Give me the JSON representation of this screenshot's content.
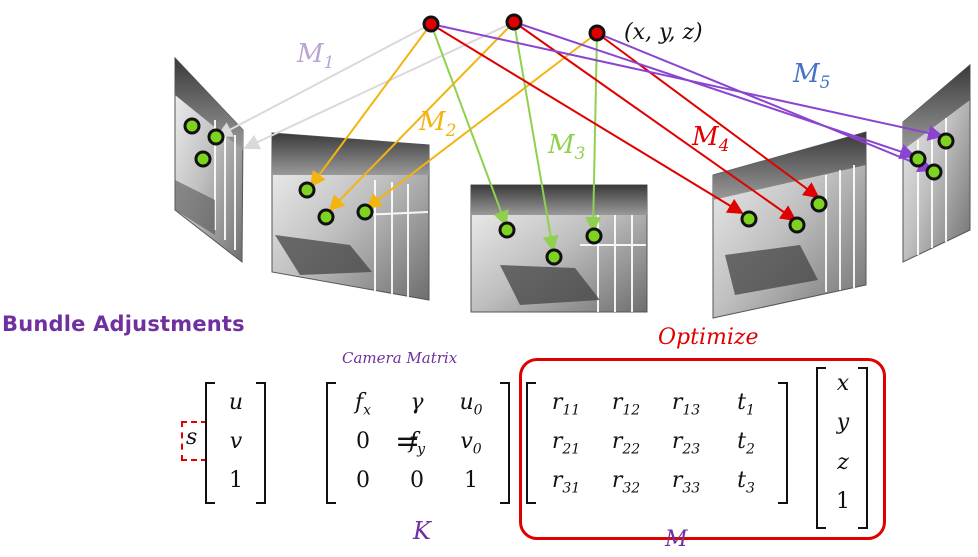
{
  "diagram": {
    "point_label": "(x, y, z)",
    "projection_labels": [
      {
        "base": "M",
        "sub": "1",
        "color": "#b9a5cf"
      },
      {
        "base": "M",
        "sub": "2",
        "color": "#f2b40f"
      },
      {
        "base": "M",
        "sub": "3",
        "color": "#8fd14f"
      },
      {
        "base": "M",
        "sub": "4",
        "color": "#e00000"
      },
      {
        "base": "M",
        "sub": "5",
        "color": "#4472c4"
      }
    ],
    "arrow_colors": {
      "m1": "#d9d9d9",
      "m2": "#f2b40f",
      "m3": "#8fd14f",
      "m4": "#e00000",
      "m5": "#8b44d0"
    },
    "point_colors": {
      "world": "#e00000",
      "image": "#7ed321"
    }
  },
  "text": {
    "title": "Bundle Adjustments",
    "camera_matrix": "Camera Matrix",
    "optimize": "Optimize",
    "k": "K",
    "m": "M"
  },
  "equation": {
    "scale": "s",
    "lhs": [
      "u",
      "v",
      "1"
    ],
    "equals": "=",
    "k_matrix": [
      [
        "f_x",
        "γ",
        "u_0"
      ],
      [
        "0",
        "f_y",
        "v_0"
      ],
      [
        "0",
        "0",
        "1"
      ]
    ],
    "m_matrix": [
      [
        "r_11",
        "r_12",
        "r_13",
        "t_1"
      ],
      [
        "r_21",
        "r_22",
        "r_23",
        "t_2"
      ],
      [
        "r_31",
        "r_32",
        "r_33",
        "t_3"
      ]
    ],
    "point_vector": [
      "x",
      "y",
      "z",
      "1"
    ]
  },
  "colors": {
    "accent": "#7030a0",
    "highlight": "#e00000",
    "ink": "#111111"
  }
}
